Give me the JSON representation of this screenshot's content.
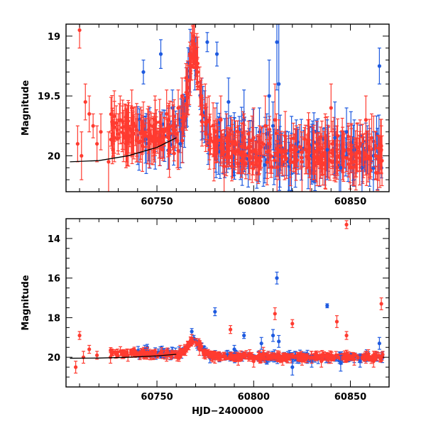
{
  "colors": {
    "red": "#ff3b30",
    "blue": "#1e5ae0",
    "model": "#000000"
  },
  "chart_data": [
    {
      "type": "scatter",
      "title": "",
      "xlabel": "",
      "ylabel": "Magnitude",
      "xlim": [
        60703,
        60870
      ],
      "ylim": [
        20.3,
        18.9
      ],
      "y_inverted": true,
      "grid": false,
      "xticks": [
        60750,
        60800,
        60850
      ],
      "yticks": [
        19,
        19.5,
        20
      ],
      "series": [
        {
          "color_key": "blue",
          "points": [
            [
              60743,
              19.3,
              0.1
            ],
            [
              60752,
              19.15,
              0.12
            ],
            [
              60758,
              19.6,
              0.15
            ],
            [
              60762,
              19.9,
              0.2
            ],
            [
              60776,
              19.05,
              0.08
            ],
            [
              60781,
              19.15,
              0.1
            ],
            [
              60787,
              19.55,
              0.2
            ],
            [
              60795,
              19.7,
              0.25
            ],
            [
              60803,
              19.8,
              0.2
            ],
            [
              60808,
              19.5,
              0.3
            ],
            [
              60810,
              19.75,
              0.2
            ],
            [
              60812,
              19.05,
              0.4
            ],
            [
              60813,
              19.4,
              0.5
            ],
            [
              60818,
              20.05,
              0.25
            ],
            [
              60822,
              19.9,
              0.2
            ],
            [
              60830,
              20.0,
              0.2
            ],
            [
              60838,
              19.95,
              0.25
            ],
            [
              60842,
              19.85,
              0.3
            ],
            [
              60845,
              20.1,
              0.3
            ],
            [
              60848,
              19.8,
              0.2
            ],
            [
              60852,
              19.95,
              0.25
            ],
            [
              60856,
              20.1,
              0.2
            ],
            [
              60862,
              20.0,
              0.2
            ],
            [
              60865,
              19.25,
              0.15
            ]
          ]
        },
        {
          "color_key": "red",
          "points": [
            [
              60710,
              18.95,
              0.15
            ],
            [
              60709,
              19.9,
              0.15
            ],
            [
              60711,
              20.0,
              0.2
            ],
            [
              60713,
              19.55,
              0.15
            ],
            [
              60715,
              19.65,
              0.15
            ],
            [
              60717,
              19.75,
              0.1
            ],
            [
              60719,
              19.9,
              0.15
            ],
            [
              60721,
              19.8,
              0.15
            ],
            [
              60725,
              20.05,
              0.25
            ],
            [
              60728,
              19.85,
              0.2
            ],
            [
              60731,
              19.7,
              0.2
            ],
            [
              60734,
              19.9,
              0.2
            ],
            [
              60737,
              19.6,
              0.15
            ],
            [
              60740,
              19.85,
              0.2
            ],
            [
              60743,
              19.75,
              0.2
            ],
            [
              60746,
              19.9,
              0.2
            ],
            [
              60749,
              19.7,
              0.2
            ],
            [
              60752,
              19.8,
              0.15
            ],
            [
              60755,
              19.65,
              0.2
            ],
            [
              60758,
              19.75,
              0.2
            ],
            [
              60761,
              19.6,
              0.15
            ],
            [
              60763,
              19.5,
              0.15
            ],
            [
              60765,
              19.35,
              0.12
            ],
            [
              60767,
              19.15,
              0.1
            ],
            [
              60769,
              19.0,
              0.1
            ],
            [
              60771,
              19.3,
              0.12
            ],
            [
              60773,
              19.5,
              0.15
            ],
            [
              60775,
              19.6,
              0.2
            ],
            [
              60777,
              19.7,
              0.2
            ],
            [
              60780,
              19.8,
              0.2
            ],
            [
              60783,
              19.7,
              0.2
            ],
            [
              60786,
              19.85,
              0.2
            ],
            [
              60789,
              19.9,
              0.2
            ],
            [
              60792,
              19.95,
              0.2
            ],
            [
              60795,
              19.85,
              0.2
            ],
            [
              60798,
              20.0,
              0.2
            ],
            [
              60800,
              19.85,
              0.25
            ],
            [
              60803,
              19.95,
              0.2
            ],
            [
              60806,
              19.75,
              0.25
            ],
            [
              60808,
              19.9,
              0.2
            ],
            [
              60811,
              19.7,
              0.3
            ],
            [
              60813,
              19.95,
              0.25
            ],
            [
              60816,
              20.0,
              0.2
            ],
            [
              60819,
              20.05,
              0.2
            ],
            [
              60822,
              19.95,
              0.2
            ],
            [
              60825,
              20.05,
              0.25
            ],
            [
              60828,
              19.9,
              0.2
            ],
            [
              60831,
              20.0,
              0.2
            ],
            [
              60834,
              20.05,
              0.2
            ],
            [
              60837,
              19.85,
              0.2
            ],
            [
              60840,
              19.6,
              0.2
            ],
            [
              60843,
              19.95,
              0.2
            ],
            [
              60846,
              20.0,
              0.2
            ],
            [
              60849,
              19.95,
              0.2
            ],
            [
              60852,
              20.05,
              0.2
            ],
            [
              60855,
              19.9,
              0.2
            ],
            [
              60858,
              19.7,
              0.2
            ],
            [
              60861,
              19.85,
              0.2
            ],
            [
              60863,
              20.0,
              0.2
            ],
            [
              60866,
              19.95,
              0.2
            ]
          ]
        }
      ],
      "model_curve": [
        [
          60705,
          20.05
        ],
        [
          60720,
          20.04
        ],
        [
          60735,
          20.0
        ],
        [
          60750,
          19.93
        ],
        [
          60760,
          19.85
        ]
      ]
    },
    {
      "type": "scatter",
      "title": "",
      "xlabel": "HJD−2400000",
      "ylabel": "Magnitude",
      "xlim": [
        60703,
        60870
      ],
      "ylim": [
        21.5,
        13
      ],
      "y_inverted": true,
      "grid": false,
      "xticks": [
        60750,
        60800,
        60850
      ],
      "yticks": [
        14,
        16,
        18,
        20
      ],
      "series": [
        {
          "color_key": "blue",
          "points": [
            [
              60745,
              19.5,
              0.15
            ],
            [
              60768,
              18.7,
              0.15
            ],
            [
              60780,
              17.7,
              0.2
            ],
            [
              60790,
              19.6,
              0.2
            ],
            [
              60795,
              18.9,
              0.15
            ],
            [
              60804,
              19.3,
              0.3
            ],
            [
              60810,
              18.9,
              0.3
            ],
            [
              60812,
              16.0,
              0.3
            ],
            [
              60813,
              19.2,
              0.3
            ],
            [
              60820,
              20.5,
              0.4
            ],
            [
              60830,
              20.2,
              0.3
            ],
            [
              60838,
              17.4,
              0.1
            ],
            [
              60845,
              20.3,
              0.4
            ],
            [
              60855,
              20.2,
              0.3
            ],
            [
              60865,
              19.3,
              0.3
            ]
          ]
        },
        {
          "color_key": "red",
          "points": [
            [
              60710,
              18.9,
              0.2
            ],
            [
              60708,
              20.5,
              0.3
            ],
            [
              60712,
              20.0,
              0.3
            ],
            [
              60715,
              19.6,
              0.2
            ],
            [
              60719,
              19.9,
              0.2
            ],
            [
              60726,
              20.0,
              0.3
            ],
            [
              60735,
              19.9,
              0.3
            ],
            [
              60745,
              19.8,
              0.3
            ],
            [
              60755,
              19.9,
              0.3
            ],
            [
              60762,
              19.7,
              0.3
            ],
            [
              60768,
              19.05,
              0.2
            ],
            [
              60772,
              19.6,
              0.3
            ],
            [
              60780,
              20.0,
              0.3
            ],
            [
              60788,
              18.6,
              0.2
            ],
            [
              60792,
              20.1,
              0.3
            ],
            [
              60800,
              20.2,
              0.3
            ],
            [
              60805,
              19.8,
              0.3
            ],
            [
              60811,
              17.8,
              0.3
            ],
            [
              60815,
              20.1,
              0.3
            ],
            [
              60820,
              18.3,
              0.2
            ],
            [
              60825,
              20.1,
              0.3
            ],
            [
              60830,
              20.0,
              0.3
            ],
            [
              60835,
              20.2,
              0.3
            ],
            [
              60840,
              20.0,
              0.3
            ],
            [
              60843,
              18.2,
              0.3
            ],
            [
              60848,
              13.3,
              0.2
            ],
            [
              60848,
              18.9,
              0.2
            ],
            [
              60852,
              20.1,
              0.3
            ],
            [
              60858,
              20.0,
              0.3
            ],
            [
              60862,
              20.2,
              0.3
            ],
            [
              60866,
              17.3,
              0.3
            ]
          ]
        }
      ],
      "model_curve": [
        [
          60705,
          20.05
        ],
        [
          60720,
          20.04
        ],
        [
          60735,
          20.0
        ],
        [
          60750,
          19.93
        ],
        [
          60760,
          19.85
        ]
      ]
    }
  ]
}
